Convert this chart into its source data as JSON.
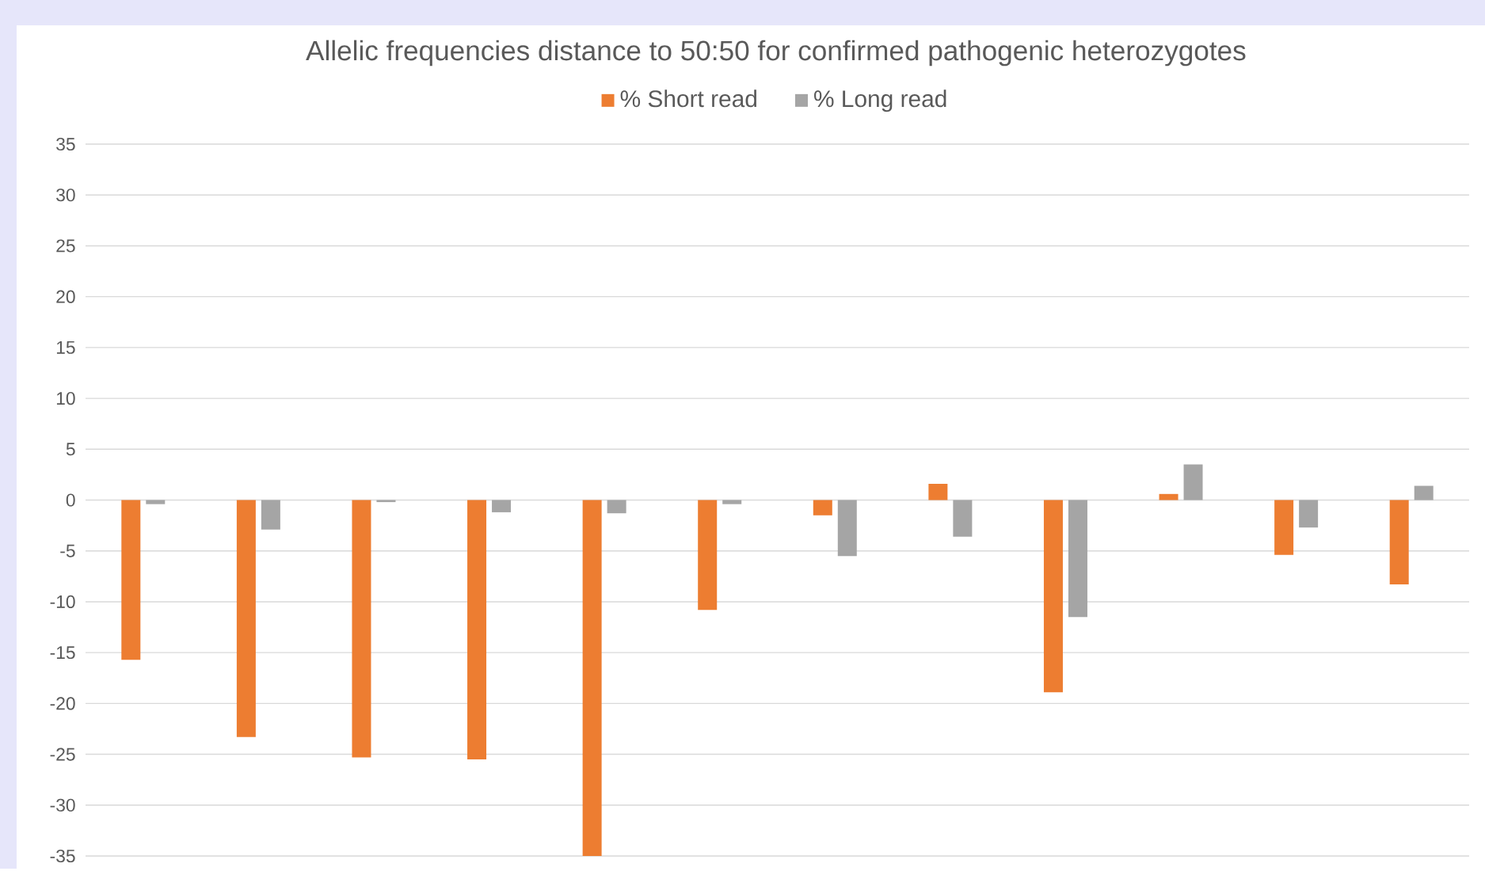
{
  "chart_data": {
    "type": "bar",
    "title": "Allelic frequencies distance to 50:50 for confirmed pathogenic heterozygotes",
    "categories": [
      null,
      null,
      null,
      null,
      null,
      null,
      null,
      null,
      null,
      null,
      null,
      null
    ],
    "series": [
      {
        "name": "% Short read",
        "color": "#ed7d31",
        "values": [
          -15.7,
          -23.3,
          -25.3,
          -25.5,
          -35,
          -10.8,
          -1.5,
          1.6,
          -18.9,
          0.6,
          -5.4,
          -8.3
        ]
      },
      {
        "name": "% Long read",
        "color": "#a5a5a5",
        "values": [
          -0.4,
          -2.9,
          -0.2,
          -1.2,
          -1.3,
          -0.4,
          -5.5,
          -3.6,
          -11.5,
          3.5,
          -2.7,
          1.4
        ]
      }
    ],
    "ylim": [
      -35,
      35
    ],
    "yticks": [
      -35,
      -30,
      -25,
      -20,
      -15,
      -10,
      -5,
      0,
      5,
      10,
      15,
      20,
      25,
      30,
      35
    ],
    "grid": "y",
    "legend": "top",
    "tick_labels": "y"
  }
}
